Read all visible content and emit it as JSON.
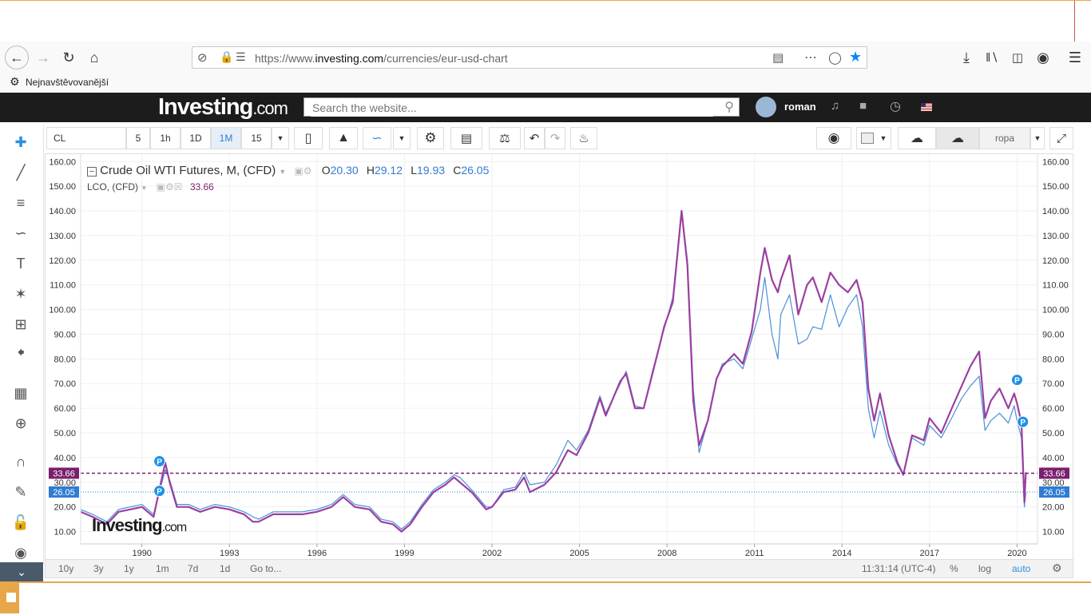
{
  "browser": {
    "url_prefix": "https://www.",
    "url_domain": "investing.com",
    "url_path": "/currencies/eur-usd-chart",
    "bookmark_label": "Nejnavštěvovanější"
  },
  "site": {
    "logo_main": "Investing",
    "logo_suffix": ".com",
    "search_placeholder": "Search the website...",
    "user_name": "roman"
  },
  "toolbar": {
    "symbol": "CL",
    "intervals": [
      "5",
      "1h",
      "1D",
      "1M",
      "15"
    ],
    "active_interval": "1M",
    "compare_label": "ropa"
  },
  "legend": {
    "main_title": "Crude Oil WTI Futures, M, (CFD)",
    "o_label": "O",
    "o_value": "20.30",
    "h_label": "H",
    "h_value": "29.12",
    "l_label": "L",
    "l_value": "19.93",
    "c_label": "C",
    "c_value": "26.05",
    "compare_title": "LCO, (CFD)",
    "compare_value": "33.66"
  },
  "watermark": {
    "main": "Investing",
    "suffix": ".com"
  },
  "bottom_bar": {
    "ranges": [
      "10y",
      "3y",
      "1y",
      "1m",
      "7d",
      "1d",
      "Go to..."
    ],
    "time": "11:31:14 (UTC-4)",
    "percent": "%",
    "log": "log",
    "auto": "auto"
  },
  "chart_data": {
    "type": "line",
    "yticks": [
      "160.00",
      "150.00",
      "140.00",
      "130.00",
      "120.00",
      "110.00",
      "100.00",
      "90.00",
      "80.00",
      "70.00",
      "60.00",
      "50.00",
      "40.00",
      "30.00",
      "20.00",
      "10.00"
    ],
    "xticks": [
      "1990",
      "1993",
      "1996",
      "1999",
      "2002",
      "2005",
      "2008",
      "2011",
      "2014",
      "2017",
      "2020"
    ],
    "ylim": [
      5,
      163
    ],
    "xlim": [
      1987.9,
      2020.7
    ],
    "price_lines": [
      {
        "label": "33.66",
        "value": 33.66,
        "color": "#7a1f6e"
      },
      {
        "label": "26.05",
        "value": 26.05,
        "color": "#2f7cd3"
      }
    ],
    "markers": [
      {
        "label": "P",
        "x": 1990.6,
        "y": 38.5
      },
      {
        "label": "P",
        "x": 1990.6,
        "y": 26.5
      },
      {
        "label": "P",
        "x": 2020.0,
        "y": 71.5
      },
      {
        "label": "P",
        "x": 2020.2,
        "y": 54.5
      }
    ],
    "series": [
      {
        "name": "Crude Oil WTI Futures",
        "color": "#4a90d9",
        "points": [
          [
            1987.9,
            19
          ],
          [
            1988.3,
            17
          ],
          [
            1988.8,
            14
          ],
          [
            1989.2,
            19
          ],
          [
            1989.6,
            20
          ],
          [
            1990.0,
            21
          ],
          [
            1990.4,
            17
          ],
          [
            1990.6,
            26
          ],
          [
            1990.8,
            35
          ],
          [
            1990.95,
            31
          ],
          [
            1991.2,
            21
          ],
          [
            1991.6,
            21
          ],
          [
            1992.0,
            19
          ],
          [
            1992.5,
            21
          ],
          [
            1993.0,
            20
          ],
          [
            1993.5,
            18
          ],
          [
            1993.8,
            16
          ],
          [
            1994.0,
            15
          ],
          [
            1994.5,
            18
          ],
          [
            1995.0,
            18
          ],
          [
            1995.5,
            18
          ],
          [
            1996.0,
            19
          ],
          [
            1996.5,
            21
          ],
          [
            1996.9,
            25
          ],
          [
            1997.3,
            21
          ],
          [
            1997.8,
            20
          ],
          [
            1998.2,
            15
          ],
          [
            1998.6,
            14
          ],
          [
            1998.9,
            11
          ],
          [
            1999.2,
            14
          ],
          [
            1999.6,
            21
          ],
          [
            2000.0,
            27
          ],
          [
            2000.4,
            30
          ],
          [
            2000.7,
            33
          ],
          [
            2000.9,
            32
          ],
          [
            2001.3,
            27
          ],
          [
            2001.8,
            20
          ],
          [
            2002.0,
            20
          ],
          [
            2002.4,
            27
          ],
          [
            2002.8,
            28
          ],
          [
            2003.1,
            34
          ],
          [
            2003.3,
            29
          ],
          [
            2003.8,
            30
          ],
          [
            2004.2,
            37
          ],
          [
            2004.6,
            47
          ],
          [
            2004.9,
            43
          ],
          [
            2005.3,
            51
          ],
          [
            2005.7,
            65
          ],
          [
            2005.9,
            58
          ],
          [
            2006.4,
            70
          ],
          [
            2006.6,
            75
          ],
          [
            2006.9,
            61
          ],
          [
            2007.2,
            60
          ],
          [
            2007.5,
            75
          ],
          [
            2007.8,
            88
          ],
          [
            2007.9,
            92
          ],
          [
            2008.2,
            105
          ],
          [
            2008.5,
            140
          ],
          [
            2008.7,
            120
          ],
          [
            2008.9,
            68
          ],
          [
            2009.1,
            42
          ],
          [
            2009.4,
            55
          ],
          [
            2009.7,
            72
          ],
          [
            2009.9,
            78
          ],
          [
            2010.3,
            80
          ],
          [
            2010.6,
            76
          ],
          [
            2010.9,
            88
          ],
          [
            2011.2,
            100
          ],
          [
            2011.35,
            113
          ],
          [
            2011.6,
            90
          ],
          [
            2011.8,
            80
          ],
          [
            2011.9,
            98
          ],
          [
            2012.2,
            106
          ],
          [
            2012.5,
            86
          ],
          [
            2012.8,
            88
          ],
          [
            2013.0,
            93
          ],
          [
            2013.3,
            92
          ],
          [
            2013.6,
            106
          ],
          [
            2013.9,
            93
          ],
          [
            2014.2,
            101
          ],
          [
            2014.5,
            106
          ],
          [
            2014.7,
            93
          ],
          [
            2014.9,
            60
          ],
          [
            2015.1,
            48
          ],
          [
            2015.3,
            59
          ],
          [
            2015.6,
            45
          ],
          [
            2015.9,
            37
          ],
          [
            2016.1,
            33
          ],
          [
            2016.4,
            48
          ],
          [
            2016.8,
            45
          ],
          [
            2017.0,
            53
          ],
          [
            2017.4,
            48
          ],
          [
            2017.8,
            57
          ],
          [
            2018.1,
            64
          ],
          [
            2018.4,
            69
          ],
          [
            2018.7,
            73
          ],
          [
            2018.9,
            51
          ],
          [
            2019.1,
            55
          ],
          [
            2019.4,
            58
          ],
          [
            2019.7,
            54
          ],
          [
            2019.9,
            61
          ],
          [
            2020.0,
            55
          ],
          [
            2020.15,
            48
          ],
          [
            2020.25,
            20
          ],
          [
            2020.3,
            26
          ]
        ]
      },
      {
        "name": "LCO",
        "color": "#9b3fa0",
        "points": [
          [
            1987.9,
            18
          ],
          [
            1988.3,
            16
          ],
          [
            1988.8,
            13
          ],
          [
            1989.2,
            18
          ],
          [
            1989.6,
            19
          ],
          [
            1990.0,
            20
          ],
          [
            1990.4,
            16
          ],
          [
            1990.6,
            27
          ],
          [
            1990.8,
            38
          ],
          [
            1990.95,
            30
          ],
          [
            1991.2,
            20
          ],
          [
            1991.6,
            20
          ],
          [
            1992.0,
            18
          ],
          [
            1992.5,
            20
          ],
          [
            1993.0,
            19
          ],
          [
            1993.5,
            17
          ],
          [
            1993.8,
            14
          ],
          [
            1994.0,
            14
          ],
          [
            1994.5,
            17
          ],
          [
            1995.0,
            17
          ],
          [
            1995.5,
            17
          ],
          [
            1996.0,
            18
          ],
          [
            1996.5,
            20
          ],
          [
            1996.9,
            24
          ],
          [
            1997.3,
            20
          ],
          [
            1997.8,
            19
          ],
          [
            1998.2,
            14
          ],
          [
            1998.6,
            13
          ],
          [
            1998.9,
            10
          ],
          [
            1999.2,
            13
          ],
          [
            1999.6,
            20
          ],
          [
            2000.0,
            26
          ],
          [
            2000.4,
            29
          ],
          [
            2000.7,
            32
          ],
          [
            2000.9,
            30
          ],
          [
            2001.3,
            26
          ],
          [
            2001.8,
            19
          ],
          [
            2002.0,
            20
          ],
          [
            2002.4,
            26
          ],
          [
            2002.8,
            27
          ],
          [
            2003.1,
            32
          ],
          [
            2003.3,
            26
          ],
          [
            2003.8,
            29
          ],
          [
            2004.2,
            34
          ],
          [
            2004.6,
            43
          ],
          [
            2004.9,
            41
          ],
          [
            2005.3,
            50
          ],
          [
            2005.7,
            64
          ],
          [
            2005.9,
            57
          ],
          [
            2006.4,
            71
          ],
          [
            2006.6,
            74
          ],
          [
            2006.9,
            60
          ],
          [
            2007.2,
            60
          ],
          [
            2007.5,
            74
          ],
          [
            2007.8,
            88
          ],
          [
            2007.9,
            93
          ],
          [
            2008.2,
            103
          ],
          [
            2008.5,
            140
          ],
          [
            2008.7,
            118
          ],
          [
            2008.9,
            63
          ],
          [
            2009.1,
            45
          ],
          [
            2009.4,
            55
          ],
          [
            2009.7,
            72
          ],
          [
            2009.9,
            77
          ],
          [
            2010.3,
            82
          ],
          [
            2010.6,
            78
          ],
          [
            2010.9,
            91
          ],
          [
            2011.2,
            115
          ],
          [
            2011.35,
            125
          ],
          [
            2011.6,
            112
          ],
          [
            2011.8,
            107
          ],
          [
            2011.9,
            112
          ],
          [
            2012.2,
            122
          ],
          [
            2012.5,
            98
          ],
          [
            2012.8,
            110
          ],
          [
            2013.0,
            113
          ],
          [
            2013.3,
            103
          ],
          [
            2013.6,
            115
          ],
          [
            2013.9,
            110
          ],
          [
            2014.2,
            107
          ],
          [
            2014.5,
            112
          ],
          [
            2014.7,
            103
          ],
          [
            2014.9,
            68
          ],
          [
            2015.1,
            55
          ],
          [
            2015.3,
            66
          ],
          [
            2015.6,
            49
          ],
          [
            2015.9,
            38
          ],
          [
            2016.1,
            33
          ],
          [
            2016.4,
            49
          ],
          [
            2016.8,
            47
          ],
          [
            2017.0,
            56
          ],
          [
            2017.4,
            50
          ],
          [
            2017.8,
            61
          ],
          [
            2018.1,
            69
          ],
          [
            2018.4,
            77
          ],
          [
            2018.7,
            83
          ],
          [
            2018.9,
            56
          ],
          [
            2019.1,
            63
          ],
          [
            2019.4,
            68
          ],
          [
            2019.7,
            60
          ],
          [
            2019.9,
            66
          ],
          [
            2020.0,
            62
          ],
          [
            2020.15,
            54
          ],
          [
            2020.25,
            22
          ],
          [
            2020.3,
            34
          ]
        ]
      }
    ]
  }
}
